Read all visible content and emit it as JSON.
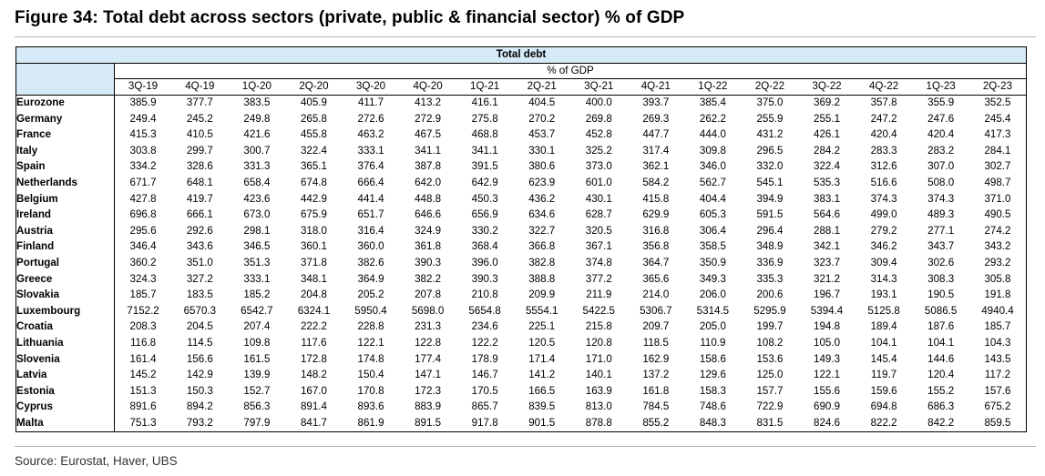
{
  "figure": {
    "title": "Figure 34: Total debt across sectors (private, public & financial sector) % of GDP",
    "source": "Source: Eurostat, Haver, UBS"
  },
  "table": {
    "title": "Total debt",
    "unit": "% of GDP",
    "columns": [
      "3Q-19",
      "4Q-19",
      "1Q-20",
      "2Q-20",
      "3Q-20",
      "4Q-20",
      "1Q-21",
      "2Q-21",
      "3Q-21",
      "4Q-21",
      "1Q-22",
      "2Q-22",
      "3Q-22",
      "4Q-22",
      "1Q-23",
      "2Q-23"
    ],
    "rows": [
      {
        "country": "Eurozone",
        "values": [
          "385.9",
          "377.7",
          "383.5",
          "405.9",
          "411.7",
          "413.2",
          "416.1",
          "404.5",
          "400.0",
          "393.7",
          "385.4",
          "375.0",
          "369.2",
          "357.8",
          "355.9",
          "352.5"
        ]
      },
      {
        "country": "Germany",
        "values": [
          "249.4",
          "245.2",
          "249.8",
          "265.8",
          "272.6",
          "272.9",
          "275.8",
          "270.2",
          "269.8",
          "269.3",
          "262.2",
          "255.9",
          "255.1",
          "247.2",
          "247.6",
          "245.4"
        ]
      },
      {
        "country": "France",
        "values": [
          "415.3",
          "410.5",
          "421.6",
          "455.8",
          "463.2",
          "467.5",
          "468.8",
          "453.7",
          "452.8",
          "447.7",
          "444.0",
          "431.2",
          "426.1",
          "420.4",
          "420.4",
          "417.3"
        ]
      },
      {
        "country": "Italy",
        "values": [
          "303.8",
          "299.7",
          "300.7",
          "322.4",
          "333.1",
          "341.1",
          "341.1",
          "330.1",
          "325.2",
          "317.4",
          "309.8",
          "296.5",
          "284.2",
          "283.3",
          "283.2",
          "284.1"
        ]
      },
      {
        "country": "Spain",
        "values": [
          "334.2",
          "328.6",
          "331.3",
          "365.1",
          "376.4",
          "387.8",
          "391.5",
          "380.6",
          "373.0",
          "362.1",
          "346.0",
          "332.0",
          "322.4",
          "312.6",
          "307.0",
          "302.7"
        ]
      },
      {
        "country": "Netherlands",
        "values": [
          "671.7",
          "648.1",
          "658.4",
          "674.8",
          "666.4",
          "642.0",
          "642.9",
          "623.9",
          "601.0",
          "584.2",
          "562.7",
          "545.1",
          "535.3",
          "516.6",
          "508.0",
          "498.7"
        ]
      },
      {
        "country": "Belgium",
        "values": [
          "427.8",
          "419.7",
          "423.6",
          "442.9",
          "441.4",
          "448.8",
          "450.3",
          "436.2",
          "430.1",
          "415.8",
          "404.4",
          "394.9",
          "383.1",
          "374.3",
          "374.3",
          "371.0"
        ]
      },
      {
        "country": "Ireland",
        "values": [
          "696.8",
          "666.1",
          "673.0",
          "675.9",
          "651.7",
          "646.6",
          "656.9",
          "634.6",
          "628.7",
          "629.9",
          "605.3",
          "591.5",
          "564.6",
          "499.0",
          "489.3",
          "490.5"
        ]
      },
      {
        "country": "Austria",
        "values": [
          "295.6",
          "292.6",
          "298.1",
          "318.0",
          "316.4",
          "324.9",
          "330.2",
          "322.7",
          "320.5",
          "316.8",
          "306.4",
          "296.4",
          "288.1",
          "279.2",
          "277.1",
          "274.2"
        ]
      },
      {
        "country": "Finland",
        "values": [
          "346.4",
          "343.6",
          "346.5",
          "360.1",
          "360.0",
          "361.8",
          "368.4",
          "366.8",
          "367.1",
          "356.8",
          "358.5",
          "348.9",
          "342.1",
          "346.2",
          "343.7",
          "343.2"
        ]
      },
      {
        "country": "Portugal",
        "values": [
          "360.2",
          "351.0",
          "351.3",
          "371.8",
          "382.6",
          "390.3",
          "396.0",
          "382.8",
          "374.8",
          "364.7",
          "350.9",
          "336.9",
          "323.7",
          "309.4",
          "302.6",
          "293.2"
        ]
      },
      {
        "country": "Greece",
        "values": [
          "324.3",
          "327.2",
          "333.1",
          "348.1",
          "364.9",
          "382.2",
          "390.3",
          "388.8",
          "377.2",
          "365.6",
          "349.3",
          "335.3",
          "321.2",
          "314.3",
          "308.3",
          "305.8"
        ]
      },
      {
        "country": "Slovakia",
        "values": [
          "185.7",
          "183.5",
          "185.2",
          "204.8",
          "205.2",
          "207.8",
          "210.8",
          "209.9",
          "211.9",
          "214.0",
          "206.0",
          "200.6",
          "196.7",
          "193.1",
          "190.5",
          "191.8"
        ]
      },
      {
        "country": "Luxembourg",
        "values": [
          "7152.2",
          "6570.3",
          "6542.7",
          "6324.1",
          "5950.4",
          "5698.0",
          "5654.8",
          "5554.1",
          "5422.5",
          "5306.7",
          "5314.5",
          "5295.9",
          "5394.4",
          "5125.8",
          "5086.5",
          "4940.4"
        ]
      },
      {
        "country": "Croatia",
        "values": [
          "208.3",
          "204.5",
          "207.4",
          "222.2",
          "228.8",
          "231.3",
          "234.6",
          "225.1",
          "215.8",
          "209.7",
          "205.0",
          "199.7",
          "194.8",
          "189.4",
          "187.6",
          "185.7"
        ]
      },
      {
        "country": "Lithuania",
        "values": [
          "116.8",
          "114.5",
          "109.8",
          "117.6",
          "122.1",
          "122.8",
          "122.2",
          "120.5",
          "120.8",
          "118.5",
          "110.9",
          "108.2",
          "105.0",
          "104.1",
          "104.1",
          "104.3"
        ]
      },
      {
        "country": "Slovenia",
        "values": [
          "161.4",
          "156.6",
          "161.5",
          "172.8",
          "174.8",
          "177.4",
          "178.9",
          "171.4",
          "171.0",
          "162.9",
          "158.6",
          "153.6",
          "149.3",
          "145.4",
          "144.6",
          "143.5"
        ]
      },
      {
        "country": "Latvia",
        "values": [
          "145.2",
          "142.9",
          "139.9",
          "148.2",
          "150.4",
          "147.1",
          "146.7",
          "141.2",
          "140.1",
          "137.2",
          "129.6",
          "125.0",
          "122.1",
          "119.7",
          "120.4",
          "117.2"
        ]
      },
      {
        "country": "Estonia",
        "values": [
          "151.3",
          "150.3",
          "152.7",
          "167.0",
          "170.8",
          "172.3",
          "170.5",
          "166.5",
          "163.9",
          "161.8",
          "158.3",
          "157.7",
          "155.6",
          "159.6",
          "155.2",
          "157.6"
        ]
      },
      {
        "country": "Cyprus",
        "values": [
          "891.6",
          "894.2",
          "856.3",
          "891.4",
          "893.6",
          "883.9",
          "865.7",
          "839.5",
          "813.0",
          "784.5",
          "748.6",
          "722.9",
          "690.9",
          "694.8",
          "686.3",
          "675.2"
        ]
      },
      {
        "country": "Malta",
        "values": [
          "751.3",
          "793.2",
          "797.9",
          "841.7",
          "861.9",
          "891.5",
          "917.8",
          "901.5",
          "878.8",
          "855.2",
          "848.3",
          "831.5",
          "824.6",
          "822.2",
          "842.2",
          "859.5"
        ]
      }
    ]
  },
  "colors": {
    "header_fill": "#d5e9f7",
    "border": "#000000"
  }
}
